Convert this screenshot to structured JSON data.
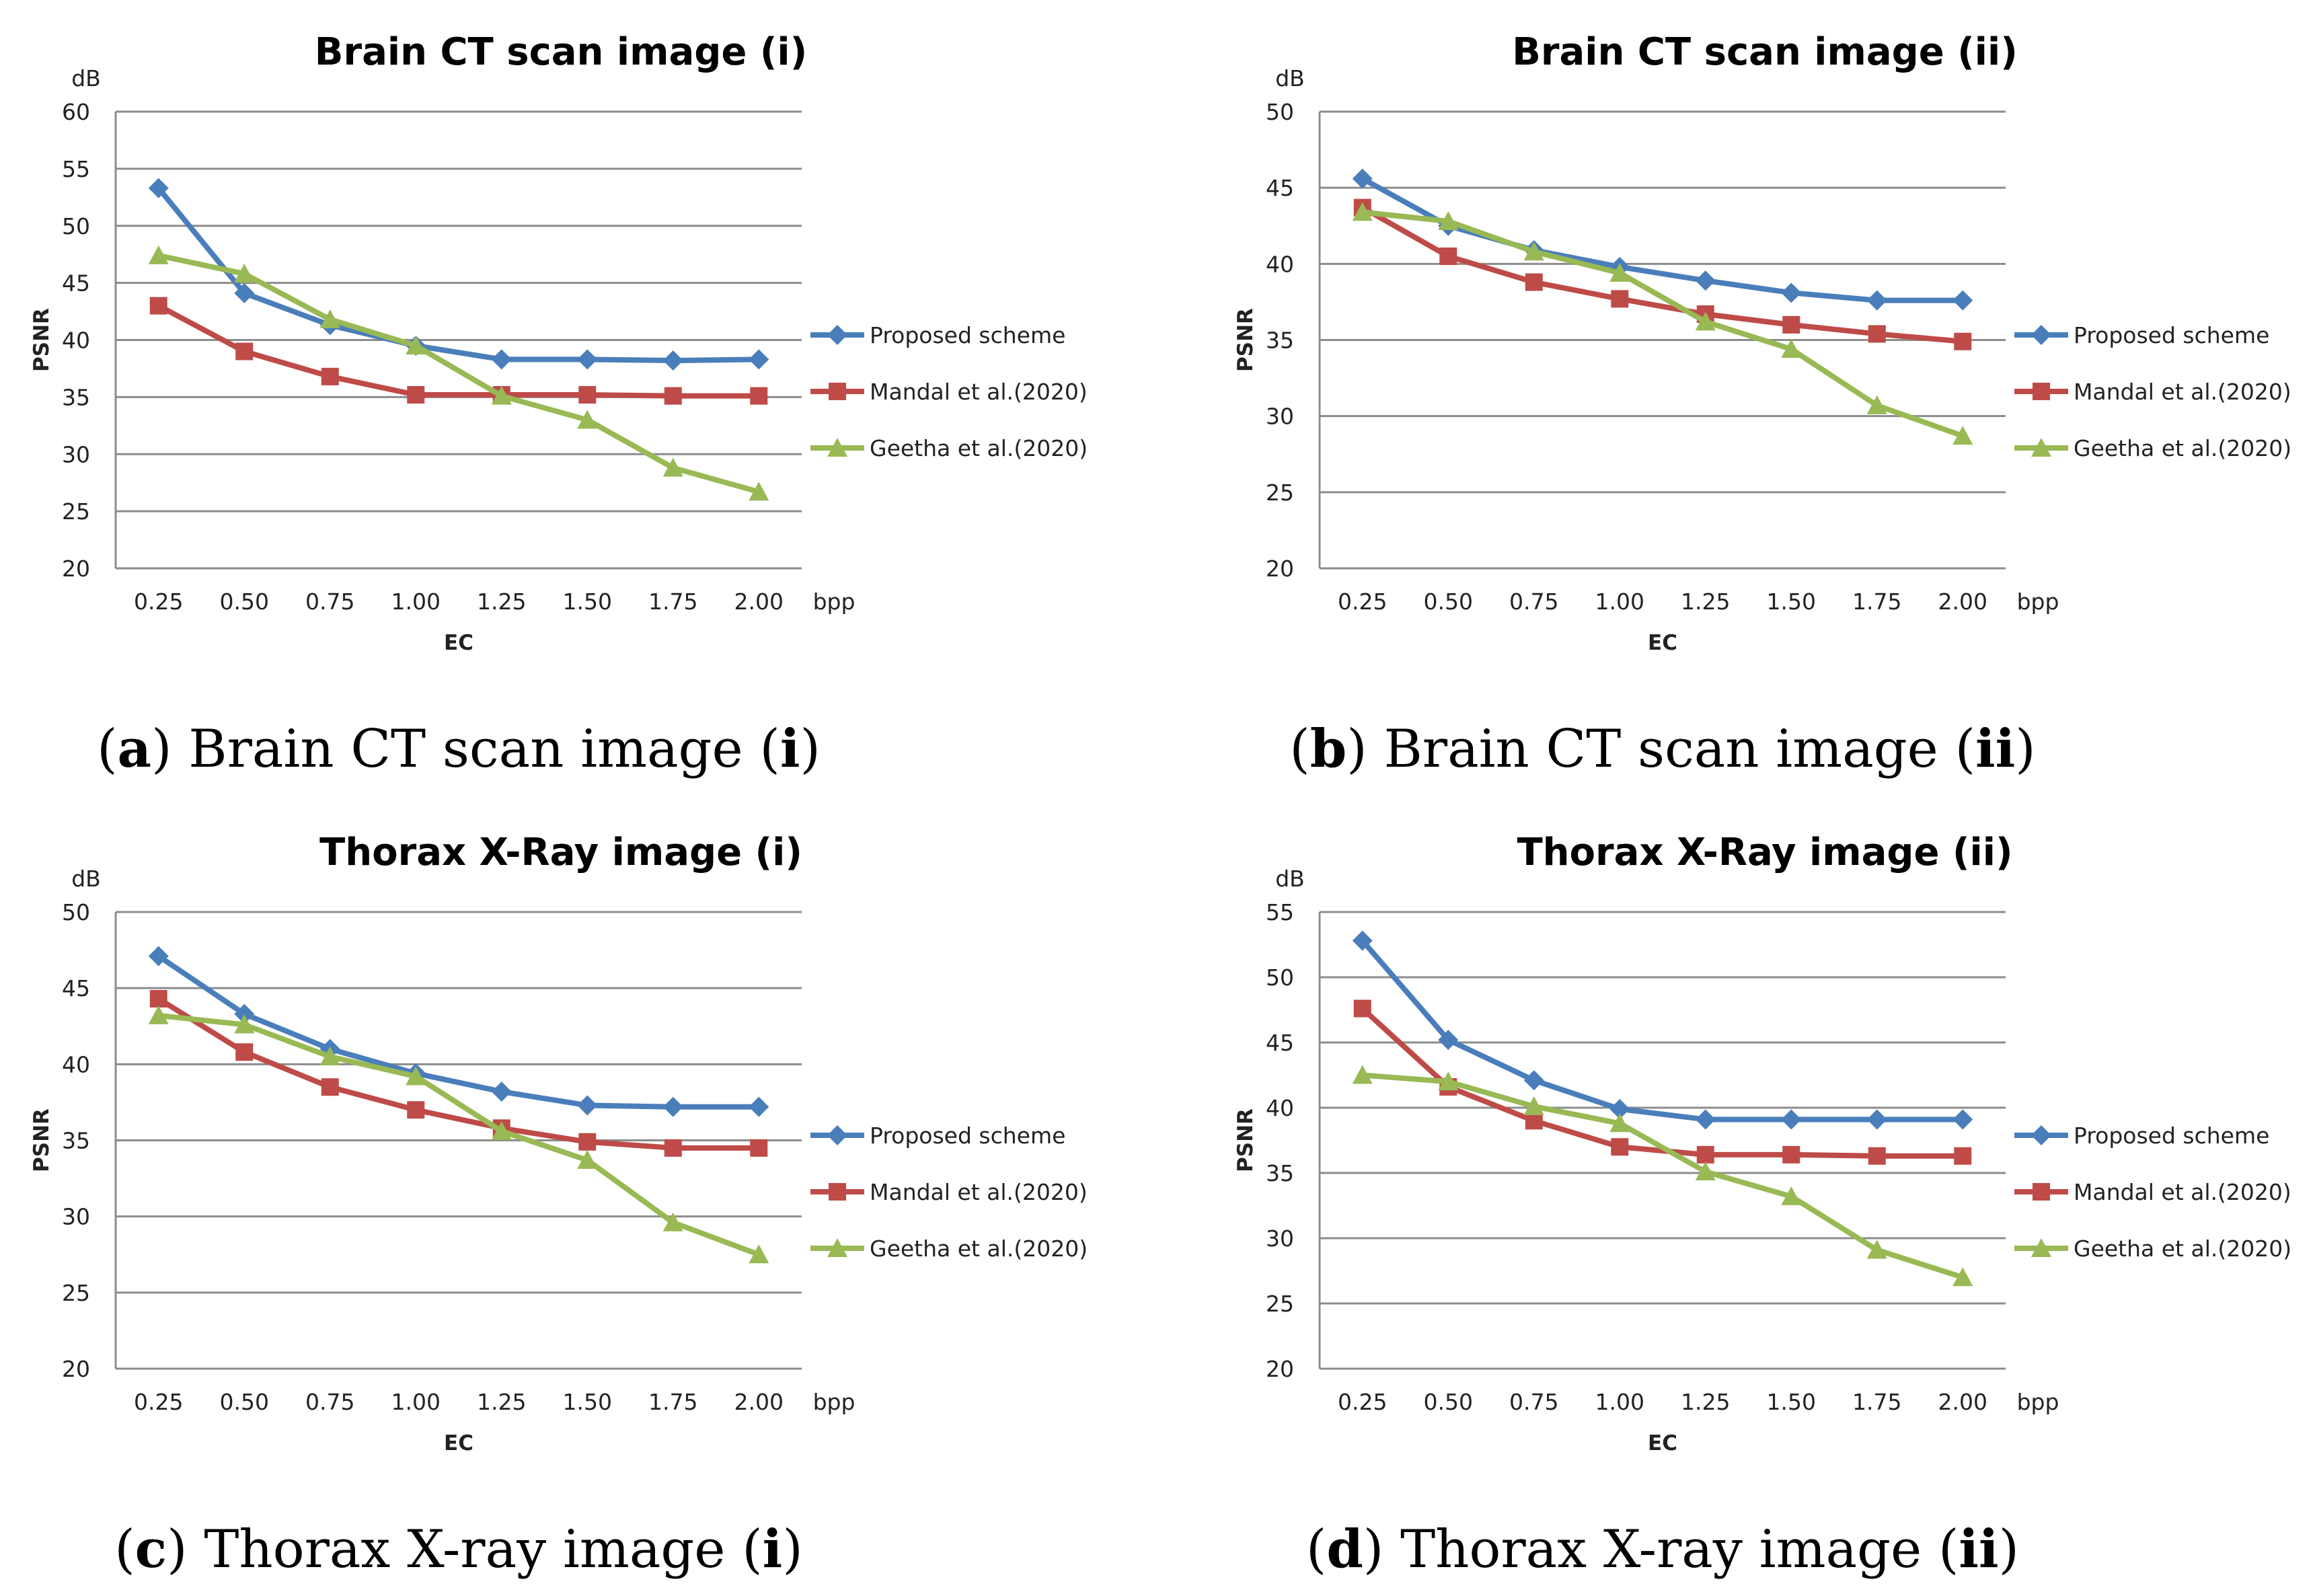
{
  "colors": {
    "proposed": "#4a7ebb",
    "mandal": "#be4b48",
    "geetha": "#98b954"
  },
  "chart_data": [
    {
      "type": "line",
      "panel_letter": "a",
      "title": "Brain CT scan image (i)",
      "caption": {
        "prefix": " Brain CT scan image (",
        "roman": "i",
        "suffix": ")"
      },
      "ylabel": "PSNR",
      "yunit": "dB",
      "xlabel": "EC",
      "xunit": "bpp",
      "ylim": [
        20,
        60
      ],
      "ystep": 5,
      "categories": [
        "0.25",
        "0.50",
        "0.75",
        "1.00",
        "1.25",
        "1.50",
        "1.75",
        "2.00"
      ],
      "series": [
        {
          "name": "Proposed scheme",
          "marker": "diamond",
          "color_key": "proposed",
          "values": [
            53.3,
            44.1,
            41.3,
            39.5,
            38.3,
            38.3,
            38.2,
            38.3
          ]
        },
        {
          "name": "Mandal et al.(2020)",
          "marker": "square",
          "color_key": "mandal",
          "values": [
            43.0,
            39.0,
            36.8,
            35.2,
            35.2,
            35.2,
            35.1,
            35.1
          ]
        },
        {
          "name": "Geetha et al.(2020)",
          "marker": "triangle",
          "color_key": "geetha",
          "values": [
            47.4,
            45.8,
            41.8,
            39.5,
            35.1,
            33.0,
            28.8,
            26.7
          ]
        }
      ]
    },
    {
      "type": "line",
      "panel_letter": "b",
      "title": "Brain CT scan image (ii)",
      "caption": {
        "prefix": " Brain CT scan image (",
        "roman": "ii",
        "suffix": ")"
      },
      "ylabel": "PSNR",
      "yunit": "dB",
      "xlabel": "EC",
      "xunit": "bpp",
      "ylim": [
        20,
        50
      ],
      "ystep": 5,
      "categories": [
        "0.25",
        "0.50",
        "0.75",
        "1.00",
        "1.25",
        "1.50",
        "1.75",
        "2.00"
      ],
      "series": [
        {
          "name": "Proposed scheme",
          "marker": "diamond",
          "color_key": "proposed",
          "values": [
            45.6,
            42.5,
            40.9,
            39.8,
            38.9,
            38.1,
            37.6,
            37.6
          ]
        },
        {
          "name": "Mandal et al.(2020)",
          "marker": "square",
          "color_key": "mandal",
          "values": [
            43.7,
            40.5,
            38.8,
            37.7,
            36.7,
            36.0,
            35.4,
            34.9
          ]
        },
        {
          "name": "Geetha et al.(2020)",
          "marker": "triangle",
          "color_key": "geetha",
          "values": [
            43.4,
            42.8,
            40.8,
            39.4,
            36.2,
            34.4,
            30.7,
            28.7
          ]
        }
      ]
    },
    {
      "type": "line",
      "panel_letter": "c",
      "title": "Thorax X-Ray image (i)",
      "caption": {
        "prefix": " Thorax X-ray image (",
        "roman": "i",
        "suffix": ")"
      },
      "ylabel": "PSNR",
      "yunit": "dB",
      "xlabel": "EC",
      "xunit": "bpp",
      "ylim": [
        20,
        50
      ],
      "ystep": 5,
      "categories": [
        "0.25",
        "0.50",
        "0.75",
        "1.00",
        "1.25",
        "1.50",
        "1.75",
        "2.00"
      ],
      "series": [
        {
          "name": "Proposed scheme",
          "marker": "diamond",
          "color_key": "proposed",
          "values": [
            47.1,
            43.3,
            41.0,
            39.4,
            38.2,
            37.3,
            37.2,
            37.2
          ]
        },
        {
          "name": "Mandal et al.(2020)",
          "marker": "square",
          "color_key": "mandal",
          "values": [
            44.3,
            40.8,
            38.5,
            37.0,
            35.8,
            34.9,
            34.5,
            34.5
          ]
        },
        {
          "name": "Geetha et al.(2020)",
          "marker": "triangle",
          "color_key": "geetha",
          "values": [
            43.2,
            42.6,
            40.5,
            39.2,
            35.6,
            33.7,
            29.6,
            27.5
          ]
        }
      ]
    },
    {
      "type": "line",
      "panel_letter": "d",
      "title": "Thorax X-Ray image (ii)",
      "caption": {
        "prefix": " Thorax X-ray image (",
        "roman": "ii",
        "suffix": ")"
      },
      "ylabel": "PSNR",
      "yunit": "dB",
      "xlabel": "EC",
      "xunit": "bpp",
      "ylim": [
        20,
        55
      ],
      "ystep": 5,
      "categories": [
        "0.25",
        "0.50",
        "0.75",
        "1.00",
        "1.25",
        "1.50",
        "1.75",
        "2.00"
      ],
      "series": [
        {
          "name": "Proposed scheme",
          "marker": "diamond",
          "color_key": "proposed",
          "values": [
            52.8,
            45.2,
            42.1,
            39.9,
            39.1,
            39.1,
            39.1,
            39.1
          ]
        },
        {
          "name": "Mandal et al.(2020)",
          "marker": "square",
          "color_key": "mandal",
          "values": [
            47.6,
            41.6,
            39.0,
            37.0,
            36.4,
            36.4,
            36.3,
            36.3
          ]
        },
        {
          "name": "Geetha et al.(2020)",
          "marker": "triangle",
          "color_key": "geetha",
          "values": [
            42.5,
            42.0,
            40.1,
            38.8,
            35.1,
            33.2,
            29.1,
            27.0
          ]
        }
      ]
    }
  ]
}
